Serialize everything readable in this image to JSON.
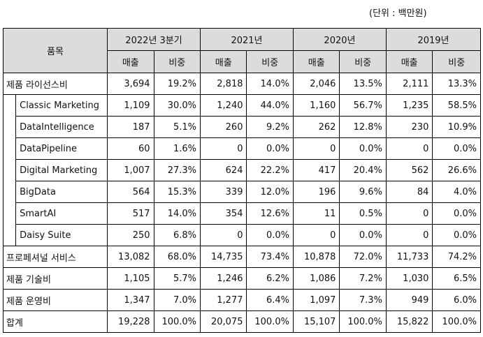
{
  "unit_label": "(단위 : 백만원)",
  "header": {
    "item": "품목",
    "periods": [
      "2022년 3분기",
      "2021년",
      "2020년",
      "2019년"
    ],
    "sales": "매출",
    "share": "비중"
  },
  "rows": [
    {
      "name": "제품 라이선스비",
      "indent": false,
      "values": [
        "3,694",
        "19.2%",
        "2,818",
        "14.0%",
        "2,046",
        "13.5%",
        "2,111",
        "13.3%"
      ]
    },
    {
      "name": "Classic Marketing",
      "indent": true,
      "values": [
        "1,109",
        "30.0%",
        "1,240",
        "44.0%",
        "1,160",
        "56.7%",
        "1,235",
        "58.5%"
      ]
    },
    {
      "name": "DataIntelligence",
      "indent": true,
      "values": [
        "187",
        "5.1%",
        "260",
        "9.2%",
        "262",
        "12.8%",
        "230",
        "10.9%"
      ]
    },
    {
      "name": "DataPipeline",
      "indent": true,
      "values": [
        "60",
        "1.6%",
        "0",
        "0.0%",
        "0",
        "0.0%",
        "0",
        "0.0%"
      ]
    },
    {
      "name": "Digital Marketing",
      "indent": true,
      "values": [
        "1,007",
        "27.3%",
        "624",
        "22.2%",
        "417",
        "20.4%",
        "562",
        "26.6%"
      ]
    },
    {
      "name": "BigData",
      "indent": true,
      "values": [
        "564",
        "15.3%",
        "339",
        "12.0%",
        "196",
        "9.6%",
        "84",
        "4.0%"
      ]
    },
    {
      "name": "SmartAI",
      "indent": true,
      "values": [
        "517",
        "14.0%",
        "354",
        "12.6%",
        "11",
        "0.5%",
        "0",
        "0.0%"
      ]
    },
    {
      "name": "Daisy Suite",
      "indent": true,
      "values": [
        "250",
        "6.8%",
        "0",
        "0.0%",
        "0",
        "0.0%",
        "0",
        "0.0%"
      ]
    },
    {
      "name": "프로페셔널 서비스",
      "indent": false,
      "values": [
        "13,082",
        "68.0%",
        "14,735",
        "73.4%",
        "10,878",
        "72.0%",
        "11,733",
        "74.2%"
      ]
    },
    {
      "name": "제품 기술비",
      "indent": false,
      "values": [
        "1,105",
        "5.7%",
        "1,246",
        "6.2%",
        "1,086",
        "7.2%",
        "1,030",
        "6.5%"
      ]
    },
    {
      "name": "제품 운영비",
      "indent": false,
      "values": [
        "1,347",
        "7.0%",
        "1,277",
        "6.4%",
        "1,097",
        "7.3%",
        "949",
        "6.0%"
      ]
    },
    {
      "name": "합계",
      "indent": false,
      "values": [
        "19,228",
        "100.0%",
        "20,075",
        "100.0%",
        "15,107",
        "100.0%",
        "15,822",
        "100.0%"
      ]
    }
  ]
}
